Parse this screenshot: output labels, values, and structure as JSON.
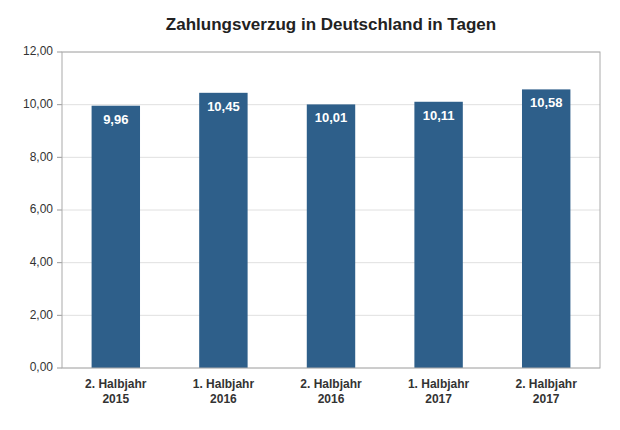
{
  "chart_data": {
    "type": "bar",
    "title": "Zahlungsverzug in Deutschland in Tagen",
    "categories": [
      "2. Halbjahr\n2015",
      "1. Halbjahr\n2016",
      "2. Halbjahr\n2016",
      "1. Halbjahr\n2017",
      "2. Halbjahr\n2017"
    ],
    "values": [
      9.96,
      10.45,
      10.01,
      10.11,
      10.58
    ],
    "value_labels": [
      "9,96",
      "10,45",
      "10,01",
      "10,11",
      "10,58"
    ],
    "data_labels": true,
    "color": "#2E5F8A",
    "ylim": [
      0,
      12
    ],
    "yticks": [
      {
        "value": 0.0,
        "label": "0,00"
      },
      {
        "value": 2.0,
        "label": "2,00"
      },
      {
        "value": 4.0,
        "label": "4,00"
      },
      {
        "value": 6.0,
        "label": "6,00"
      },
      {
        "value": 8.0,
        "label": "8,00"
      },
      {
        "value": 10.0,
        "label": "10,00"
      },
      {
        "value": 12.0,
        "label": "12,00"
      }
    ],
    "grid": true
  }
}
